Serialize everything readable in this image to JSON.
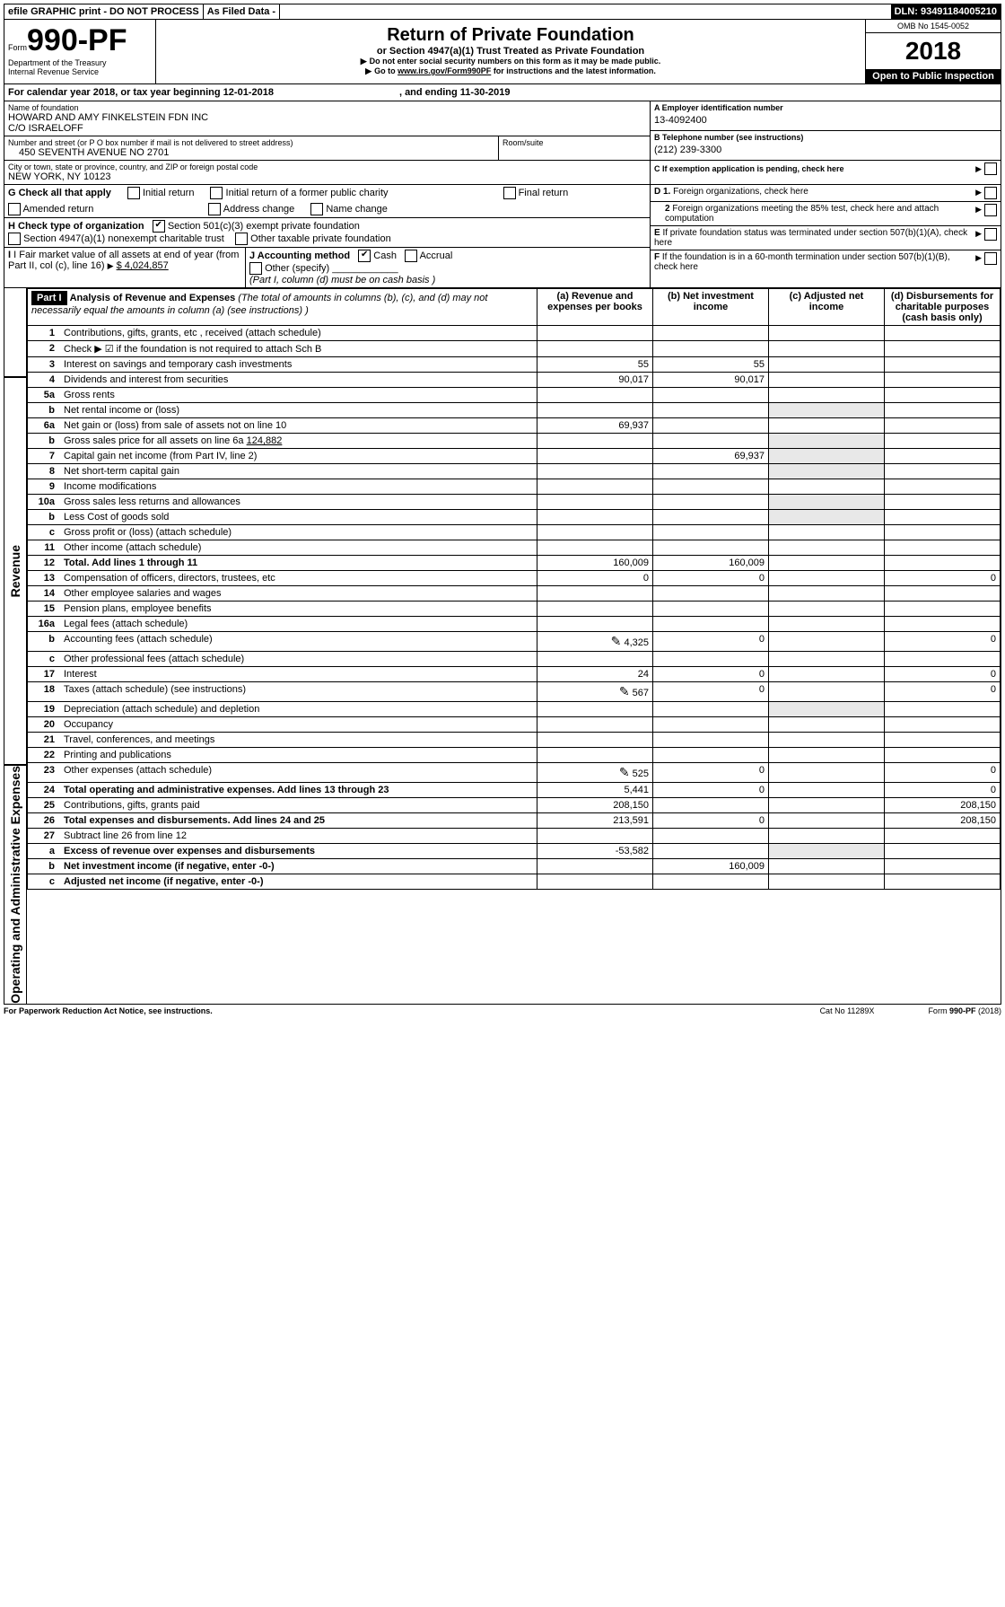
{
  "topbar": {
    "efile": "efile GRAPHIC print - DO NOT PROCESS",
    "asfiled": "As Filed Data -",
    "dln_label": "DLN:",
    "dln": "93491184005210"
  },
  "header": {
    "form_prefix": "Form",
    "form_no": "990-PF",
    "dept": "Department of the Treasury",
    "irs": "Internal Revenue Service",
    "title": "Return of Private Foundation",
    "subtitle": "or Section 4947(a)(1) Trust Treated as Private Foundation",
    "line1": "Do not enter social security numbers on this form as it may be made public.",
    "line2_pre": "Go to",
    "line2_link": "www.irs.gov/Form990PF",
    "line2_post": "for instructions and the latest information.",
    "omb": "OMB No 1545-0052",
    "year": "2018",
    "open": "Open to Public Inspection"
  },
  "period": {
    "prefix": "For calendar year 2018, or tax year beginning",
    "begin": "12-01-2018",
    "mid": ", and ending",
    "end": "11-30-2019"
  },
  "nameaddr": {
    "name_lbl": "Name of foundation",
    "name1": "HOWARD AND AMY FINKELSTEIN FDN INC",
    "name2": "C/O ISRAELOFF",
    "street_lbl": "Number and street (or P O  box number if mail is not delivered to street address)",
    "street": "450 SEVENTH AVENUE NO 2701",
    "room_lbl": "Room/suite",
    "city_lbl": "City or town, state or province, country, and ZIP or foreign postal code",
    "city": "NEW YORK, NY  10123"
  },
  "rightinfo": {
    "A_lbl": "A Employer identification number",
    "A_val": "13-4092400",
    "B_lbl": "B Telephone number (see instructions)",
    "B_val": "(212) 239-3300",
    "C_lbl": "C If exemption application is pending, check here",
    "D1": "D 1. Foreign organizations, check here",
    "D2": "2  Foreign organizations meeting the 85% test, check here and attach computation",
    "E": "E  If private foundation status was terminated under section 507(b)(1)(A), check here",
    "F": "F  If the foundation is in a 60-month termination under section 507(b)(1)(B), check here"
  },
  "G": {
    "lbl": "G Check all that apply",
    "o1": "Initial return",
    "o2": "Initial return of a former public charity",
    "o3": "Final return",
    "o4": "Amended return",
    "o5": "Address change",
    "o6": "Name change"
  },
  "H": {
    "lbl": "H Check type of organization",
    "o1": "Section 501(c)(3) exempt private foundation",
    "o2": "Section 4947(a)(1) nonexempt charitable trust",
    "o3": "Other taxable private foundation"
  },
  "I": {
    "lbl": "I Fair market value of all assets at end of year (from Part II, col  (c), line 16)",
    "val": "$  4,024,857"
  },
  "J": {
    "lbl": "J Accounting method",
    "cash": "Cash",
    "accrual": "Accrual",
    "other": "Other (specify)",
    "note": "(Part I, column (d) must be on cash basis )"
  },
  "part1": {
    "tag": "Part I",
    "title": "Analysis of Revenue and Expenses",
    "note": "(The total of amounts in columns (b), (c), and (d) may not necessarily equal the amounts in column (a) (see instructions) )",
    "col_a": "(a)   Revenue and expenses per books",
    "col_b": "(b)  Net investment income",
    "col_c": "(c)  Adjusted net income",
    "col_d": "(d)  Disbursements for charitable purposes (cash basis only)",
    "rev_label": "Revenue",
    "exp_label": "Operating and Administrative Expenses"
  },
  "rows": {
    "r1": {
      "n": "1",
      "t": "Contributions, gifts, grants, etc , received (attach schedule)"
    },
    "r2": {
      "n": "2",
      "t": "Check ▶ ☑ if the foundation is not required to attach Sch B"
    },
    "r3": {
      "n": "3",
      "t": "Interest on savings and temporary cash investments",
      "a": "55",
      "b": "55"
    },
    "r4": {
      "n": "4",
      "t": "Dividends and interest from securities",
      "a": "90,017",
      "b": "90,017"
    },
    "r5a": {
      "n": "5a",
      "t": "Gross rents"
    },
    "r5b": {
      "n": "b",
      "t": "Net rental income or (loss)"
    },
    "r6a": {
      "n": "6a",
      "t": "Net gain or (loss) from sale of assets not on line 10",
      "a": "69,937"
    },
    "r6b": {
      "n": "b",
      "t": "Gross sales price for all assets on line 6a",
      "inline": "124,882"
    },
    "r7": {
      "n": "7",
      "t": "Capital gain net income (from Part IV, line 2)",
      "b": "69,937"
    },
    "r8": {
      "n": "8",
      "t": "Net short-term capital gain"
    },
    "r9": {
      "n": "9",
      "t": "Income modifications"
    },
    "r10a": {
      "n": "10a",
      "t": "Gross sales less returns and allowances"
    },
    "r10b": {
      "n": "b",
      "t": "Less  Cost of goods sold"
    },
    "r10c": {
      "n": "c",
      "t": "Gross profit or (loss) (attach schedule)"
    },
    "r11": {
      "n": "11",
      "t": "Other income (attach schedule)"
    },
    "r12": {
      "n": "12",
      "t": "Total. Add lines 1 through 11",
      "bold": true,
      "a": "160,009",
      "b": "160,009"
    },
    "r13": {
      "n": "13",
      "t": "Compensation of officers, directors, trustees, etc",
      "a": "0",
      "b": "0",
      "d": "0"
    },
    "r14": {
      "n": "14",
      "t": "Other employee salaries and wages"
    },
    "r15": {
      "n": "15",
      "t": "Pension plans, employee benefits"
    },
    "r16a": {
      "n": "16a",
      "t": "Legal fees (attach schedule)"
    },
    "r16b": {
      "n": "b",
      "t": "Accounting fees (attach schedule)",
      "icon": true,
      "a": "4,325",
      "b": "0",
      "d": "0"
    },
    "r16c": {
      "n": "c",
      "t": "Other professional fees (attach schedule)"
    },
    "r17": {
      "n": "17",
      "t": "Interest",
      "a": "24",
      "b": "0",
      "d": "0"
    },
    "r18": {
      "n": "18",
      "t": "Taxes (attach schedule) (see instructions)",
      "icon": true,
      "a": "567",
      "b": "0",
      "d": "0"
    },
    "r19": {
      "n": "19",
      "t": "Depreciation (attach schedule) and depletion"
    },
    "r20": {
      "n": "20",
      "t": "Occupancy"
    },
    "r21": {
      "n": "21",
      "t": "Travel, conferences, and meetings"
    },
    "r22": {
      "n": "22",
      "t": "Printing and publications"
    },
    "r23": {
      "n": "23",
      "t": "Other expenses (attach schedule)",
      "icon": true,
      "a": "525",
      "b": "0",
      "d": "0"
    },
    "r24": {
      "n": "24",
      "t": "Total operating and administrative expenses. Add lines 13 through 23",
      "bold": true,
      "a": "5,441",
      "b": "0",
      "d": "0"
    },
    "r25": {
      "n": "25",
      "t": "Contributions, gifts, grants paid",
      "a": "208,150",
      "d": "208,150"
    },
    "r26": {
      "n": "26",
      "t": "Total expenses and disbursements. Add lines 24 and 25",
      "bold": true,
      "a": "213,591",
      "b": "0",
      "d": "208,150"
    },
    "r27": {
      "n": "27",
      "t": "Subtract line 26 from line 12"
    },
    "r27a": {
      "n": "a",
      "t": "Excess of revenue over expenses and disbursements",
      "bold": true,
      "a": "-53,582"
    },
    "r27b": {
      "n": "b",
      "t": "Net investment income (if negative, enter -0-)",
      "bold": true,
      "b": "160,009"
    },
    "r27c": {
      "n": "c",
      "t": "Adjusted net income (if negative, enter -0-)",
      "bold": true
    }
  },
  "footer": {
    "left": "For Paperwork Reduction Act Notice, see instructions.",
    "mid": "Cat No  11289X",
    "right_pre": "Form",
    "right_form": "990-PF",
    "right_yr": "(2018)"
  }
}
